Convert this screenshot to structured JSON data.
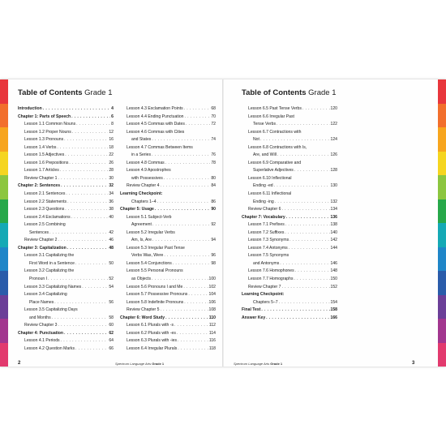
{
  "left_page": {
    "title": "Table of Contents",
    "title_grade": "Grade 1",
    "page_number": "2",
    "footer_title": "Spectrum Language Arts",
    "footer_grade": "Grade 1",
    "columns": [
      [
        {
          "text": "Introduction",
          "page": "4",
          "level": 1,
          "bold": true
        },
        {
          "text": "Chapter 1: Parts of Speech",
          "page": "6",
          "level": 1,
          "bold": true
        },
        {
          "text": "Lesson 1.1 Common Nouns",
          "page": "8",
          "level": 2
        },
        {
          "text": "Lesson 1.2 Proper Nouns",
          "page": "12",
          "level": 2
        },
        {
          "text": "Lesson 1.3 Pronouns",
          "page": "16",
          "level": 2
        },
        {
          "text": "Lesson 1.4 Verbs",
          "page": "18",
          "level": 2
        },
        {
          "text": "Lesson 1.5 Adjectives",
          "page": "22",
          "level": 2
        },
        {
          "text": "Lesson 1.6 Prepositions",
          "page": "26",
          "level": 2
        },
        {
          "text": "Lesson 1.7 Articles",
          "page": "28",
          "level": 2
        },
        {
          "text": "Review Chapter 1",
          "page": "30",
          "level": 2
        },
        {
          "text": "Chapter 2: Sentences",
          "page": "32",
          "level": 1,
          "bold": true
        },
        {
          "text": "Lesson 2.1 Sentences",
          "page": "34",
          "level": 2
        },
        {
          "text": "Lesson 2.2 Statements",
          "page": "36",
          "level": 2
        },
        {
          "text": "Lesson 2.3 Questions",
          "page": "38",
          "level": 2
        },
        {
          "text": "Lesson 2.4 Exclamations",
          "page": "40",
          "level": 2
        },
        {
          "text": "Lesson 2.5 Combining",
          "page": "",
          "level": 2,
          "noline": true
        },
        {
          "text": "Sentences",
          "page": "42",
          "level": 3
        },
        {
          "text": "Review Chapter 2",
          "page": "46",
          "level": 2
        },
        {
          "text": "Chapter 3: Capitalization",
          "page": "48",
          "level": 1,
          "bold": true
        },
        {
          "text": "Lesson 3.1 Capitalizing the",
          "page": "",
          "level": 2,
          "noline": true
        },
        {
          "text": "First Word in a Sentence",
          "page": "50",
          "level": 3
        },
        {
          "text": "Lesson 3.2 Capitalizing the",
          "page": "",
          "level": 2,
          "noline": true
        },
        {
          "text": "Pronoun I",
          "page": "52",
          "level": 3
        },
        {
          "text": "Lesson 3.3 Capitalizing Names",
          "page": "54",
          "level": 2
        },
        {
          "text": "Lesson 3.4 Capitalizing",
          "page": "",
          "level": 2,
          "noline": true
        },
        {
          "text": "Place Names",
          "page": "56",
          "level": 3
        },
        {
          "text": "Lesson 3.5 Capitalizing Days",
          "page": "",
          "level": 2,
          "noline": true
        },
        {
          "text": "and Months",
          "page": "58",
          "level": 3
        },
        {
          "text": "Review Chapter 3",
          "page": "60",
          "level": 2
        },
        {
          "text": "Chapter 4: Punctuation",
          "page": "62",
          "level": 1,
          "bold": true
        },
        {
          "text": "Lesson 4.1 Periods",
          "page": "64",
          "level": 2
        },
        {
          "text": "Lesson 4.2 Question Marks",
          "page": "66",
          "level": 2
        }
      ],
      [
        {
          "text": "Lesson 4.3 Exclamation Points",
          "page": "68",
          "level": 2
        },
        {
          "text": "Lesson 4.4 Ending Punctuation",
          "page": "70",
          "level": 2
        },
        {
          "text": "Lesson 4.5 Commas with Dates",
          "page": "72",
          "level": 2
        },
        {
          "text": "Lesson 4.6 Commas with Cities",
          "page": "",
          "level": 2,
          "noline": true
        },
        {
          "text": "and States",
          "page": "74",
          "level": 3
        },
        {
          "text": "Lesson 4.7 Commas Between Items",
          "page": "",
          "level": 2,
          "noline": true
        },
        {
          "text": "in a Series",
          "page": "76",
          "level": 3
        },
        {
          "text": "Lesson 4.8 Commas",
          "page": "78",
          "level": 2
        },
        {
          "text": "Lesson 4.9 Apostrophes",
          "page": "",
          "level": 2,
          "noline": true
        },
        {
          "text": "with Possessives",
          "page": "80",
          "level": 3
        },
        {
          "text": "Review Chapter 4",
          "page": "84",
          "level": 2
        },
        {
          "text": "Learning Checkpoint:",
          "page": "",
          "level": 1,
          "bold": true,
          "noline": true
        },
        {
          "text": "Chapters 1–4",
          "page": "86",
          "level": 3
        },
        {
          "text": "Chapter 5: Usage",
          "page": "90",
          "level": 1,
          "bold": true
        },
        {
          "text": "Lesson 5.1 Subject-Verb",
          "page": "",
          "level": 2,
          "noline": true
        },
        {
          "text": "Agreement",
          "page": "92",
          "level": 3
        },
        {
          "text": "Lesson 5.2 Irregular Verbs",
          "page": "",
          "level": 2,
          "noline": true
        },
        {
          "text": "Am, Is, Are",
          "page": "94",
          "level": 3
        },
        {
          "text": "Lesson 5.3 Irregular Past Tense",
          "page": "",
          "level": 2,
          "noline": true
        },
        {
          "text": "Verbs Was, Were",
          "page": "96",
          "level": 3
        },
        {
          "text": "Lesson 5.4 Conjunctions",
          "page": "98",
          "level": 2
        },
        {
          "text": "Lesson 5.5 Personal Pronouns",
          "page": "",
          "level": 2,
          "noline": true
        },
        {
          "text": "as Objects",
          "page": "100",
          "level": 3
        },
        {
          "text": "Lesson 5.6 Pronouns I and Me",
          "page": "102",
          "level": 2
        },
        {
          "text": "Lesson 5.7 Possessive Pronouns",
          "page": "104",
          "level": 2
        },
        {
          "text": "Lesson 5.8 Indefinite Pronouns",
          "page": "106",
          "level": 2
        },
        {
          "text": "Review Chapter 5",
          "page": "108",
          "level": 2
        },
        {
          "text": "Chapter 6: Word Study",
          "page": "110",
          "level": 1,
          "bold": true
        },
        {
          "text": "Lesson 6.1 Plurals with -s",
          "page": "112",
          "level": 2
        },
        {
          "text": "Lesson 6.2 Plurals with -es",
          "page": "114",
          "level": 2
        },
        {
          "text": "Lesson 6.3 Plurals with -ies",
          "page": "116",
          "level": 2
        },
        {
          "text": "Lesson 6.4 Irregular Plurals",
          "page": "118",
          "level": 2
        }
      ]
    ]
  },
  "right_page": {
    "title": "Table of Contents",
    "title_grade": "Grade 1",
    "page_number": "3",
    "footer_title": "Spectrum Language Arts",
    "footer_grade": "Grade 1",
    "columns": [
      [
        {
          "text": "Lesson 6.5 Past Tense Verbs",
          "page": "120",
          "level": 2
        },
        {
          "text": "Lesson 6.6 Irregular Past",
          "page": "",
          "level": 2,
          "noline": true
        },
        {
          "text": "Tense Verbs",
          "page": "122",
          "level": 3
        },
        {
          "text": "Lesson 6.7 Contractions with",
          "page": "",
          "level": 2,
          "noline": true
        },
        {
          "text": "Not",
          "page": "124",
          "level": 3
        },
        {
          "text": "Lesson 6.8 Contractions with Is,",
          "page": "",
          "level": 2,
          "noline": true
        },
        {
          "text": "Are, and Will",
          "page": "126",
          "level": 3
        },
        {
          "text": "Lesson 6.9 Comparative and",
          "page": "",
          "level": 2,
          "noline": true
        },
        {
          "text": "Superlative Adjectives",
          "page": "128",
          "level": 3
        },
        {
          "text": "Lesson 6.10 Inflectional",
          "page": "",
          "level": 2,
          "noline": true
        },
        {
          "text": "Ending -ed",
          "page": "130",
          "level": 3
        },
        {
          "text": "Lesson 6.11 Inflectional",
          "page": "",
          "level": 2,
          "noline": true
        },
        {
          "text": "Ending -ing",
          "page": "132",
          "level": 3
        },
        {
          "text": "Review Chapter 6",
          "page": "134",
          "level": 2
        },
        {
          "text": "Chapter 7: Vocabulary",
          "page": "136",
          "level": 1,
          "bold": true
        },
        {
          "text": "Lesson 7.1 Prefixes",
          "page": "138",
          "level": 2
        },
        {
          "text": "Lesson 7.2 Suffixes",
          "page": "140",
          "level": 2
        },
        {
          "text": "Lesson 7.3 Synonyms",
          "page": "142",
          "level": 2
        },
        {
          "text": "Lesson 7.4 Antonyms",
          "page": "144",
          "level": 2
        },
        {
          "text": "Lesson 7.5 Synonyms",
          "page": "",
          "level": 2,
          "noline": true
        },
        {
          "text": "and Antonyms",
          "page": "146",
          "level": 3
        },
        {
          "text": "Lesson 7.6 Homophones",
          "page": "148",
          "level": 2
        },
        {
          "text": "Lesson 7.7 Homographs",
          "page": "150",
          "level": 2
        },
        {
          "text": "Review Chapter 7",
          "page": "152",
          "level": 2
        },
        {
          "text": "Learning Checkpoint:",
          "page": "",
          "level": 1,
          "bold": true,
          "noline": true
        },
        {
          "text": "Chapters 5–7",
          "page": "154",
          "level": 3
        },
        {
          "text": "Final Test",
          "page": "158",
          "level": 1,
          "bold": true
        },
        {
          "text": "Answer Key",
          "page": "166",
          "level": 1,
          "bold": true
        }
      ]
    ]
  },
  "colors": {
    "strip": [
      "#e8363c",
      "#f26f2c",
      "#f7a51e",
      "#f5d520",
      "#8cc63f",
      "#27a84a",
      "#15a9b5",
      "#1f86c8",
      "#2a5caa",
      "#6b3f98",
      "#a2368f",
      "#e23a6e"
    ]
  }
}
